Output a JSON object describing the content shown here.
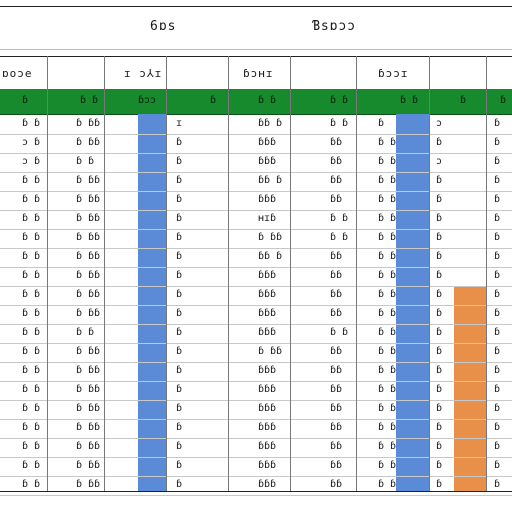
{
  "title_bar": {
    "left_text": "6ɒs",
    "right_text": "Ɓsɒɔɔ"
  },
  "column_headers": [
    "ɒoɔe",
    "ɪ ɔ⅄ɪ",
    "ɓɔʜɪ",
    "ɓɔɔɪ"
  ],
  "green_row": [
    "ɓ",
    "ɓ ɓ",
    "ɓɔɔ",
    "ɓ",
    "ɓ ɓ",
    "ɓ ɓ",
    "ɓ ɓ",
    "ɓ",
    "ɓ"
  ],
  "rows": [
    [
      "ɓ ɓ",
      "ɓ ɓɓ",
      "ɪ",
      "ɓɓ ɓ",
      "ɓ ɓ",
      "ɓ",
      "ɔ",
      "ɓ"
    ],
    [
      "ɔ ɓ",
      "ɓ ɓɓ",
      "ɓ",
      "ɓɓɓ",
      "ɓɓ",
      "ɓ ɓ",
      "ɓ",
      "ɓ"
    ],
    [
      "ɔ ɓ",
      "ɓ ɓ",
      "ɓ",
      "ɓɓɓ",
      "ɓɓ",
      "ɓ ɓ",
      "ɔ",
      "ɓ"
    ],
    [
      "ɓ ɓ",
      "ɓ ɓɓ",
      "ɓ",
      "ɓɓ ɓ",
      "ɓɓ",
      "ɓ ɓ",
      "ɓ",
      "ɓ"
    ],
    [
      "ɓ ɓ",
      "ɓ ɓɓ",
      "ɓ",
      "ɓɓɓ",
      "ɓɓ",
      "ɓ ɓ",
      "ɓ",
      "ɓ"
    ],
    [
      "ɓ ɓ",
      "ɓ ɓɓ",
      "ɓ",
      "ʜɪɓ",
      "ɓ ɓ",
      "ɓ ɓ",
      "ɓ",
      "ɓ"
    ],
    [
      "ɓ ɓ",
      "ɓ ɓɓ",
      "ɓ",
      "ɓ ɓɓ",
      "ɓ ɓ",
      "ɓ ɓ",
      "ɓ",
      "ɓ"
    ],
    [
      "ɓ ɓ",
      "ɓ ɓɓ",
      "ɓ",
      "ɓɓ ɓ",
      "ɓɓ",
      "ɓ ɓ",
      "ɓ",
      "ɓ"
    ],
    [
      "ɓ ɓ",
      "ɓ ɓɓ",
      "ɓ",
      "ɓɓɓ",
      "ɓɓ",
      "ɓ ɓ",
      "ɓ",
      "ɓ"
    ],
    [
      "ɓ ɓ",
      "ɓ ɓɓ",
      "ɓ",
      "ɓɓɓ",
      "ɓɓ",
      "ɓ ɓ",
      "ɓ",
      "ɓ"
    ],
    [
      "ɓ ɓ",
      "ɓ ɓɓ",
      "ɓ",
      "ɓɓɓ",
      "ɓɓ",
      "ɓ ɓ",
      "ɓ",
      "ɓ"
    ],
    [
      "ɓ ɓ",
      "ɓ ɓ",
      "ɓ",
      "ɓɓɓ",
      "ɓ ɓ",
      "ɓ ɓ",
      "ɓ",
      "ɓ"
    ],
    [
      "ɓ ɓ",
      "ɓ ɓɓ",
      "ɓ",
      "ɓ ɓɓ",
      "ɓɓ",
      "ɓ ɓ",
      "ɓ",
      "ɓ"
    ],
    [
      "ɓ ɓ",
      "ɓ ɓɓ",
      "ɓ",
      "ɓɓɓ",
      "ɓɓ",
      "ɓ ɓ",
      "ɓ",
      "ɓ"
    ],
    [
      "ɓ ɓ",
      "ɓ ɓɓ",
      "ɓ",
      "ɓɓɓ",
      "ɓɓ",
      "ɓ ɓ",
      "ɓ",
      "ɓ"
    ],
    [
      "ɓ ɓ",
      "ɓ ɓɓ",
      "ɓ",
      "ɓɓɓ",
      "ɓɓ",
      "ɓ ɓ",
      "ɓ",
      "ɓ"
    ],
    [
      "ɓ ɓ",
      "ɓ ɓɓ",
      "ɓ",
      "ɓɓɓ",
      "ɓɓ",
      "ɓ ɓ",
      "ɓ",
      "ɓ"
    ],
    [
      "ɓ ɓ",
      "ɓ ɓɓ",
      "ɓ",
      "ɓɓɓ",
      "ɓɓ",
      "ɓ ɓ",
      "ɓ",
      "ɓ"
    ],
    [
      "ɓ ɓ",
      "ɓ ɓɓ",
      "ɓ",
      "ɓɓɓ",
      "ɓɓ",
      "ɓ ɓ",
      "ɓ",
      "ɓ"
    ],
    [
      "ɓ ɓ",
      "ɓ ɓɓ",
      "ɓ",
      "ɓɓɓ",
      "ɓɓ",
      "ɓ ɓ",
      "ɓ",
      "ɓ"
    ]
  ],
  "colors": {
    "header_green": "#168a2d",
    "highlight_blue": "#5b8ad6",
    "highlight_orange": "#e8904a"
  }
}
